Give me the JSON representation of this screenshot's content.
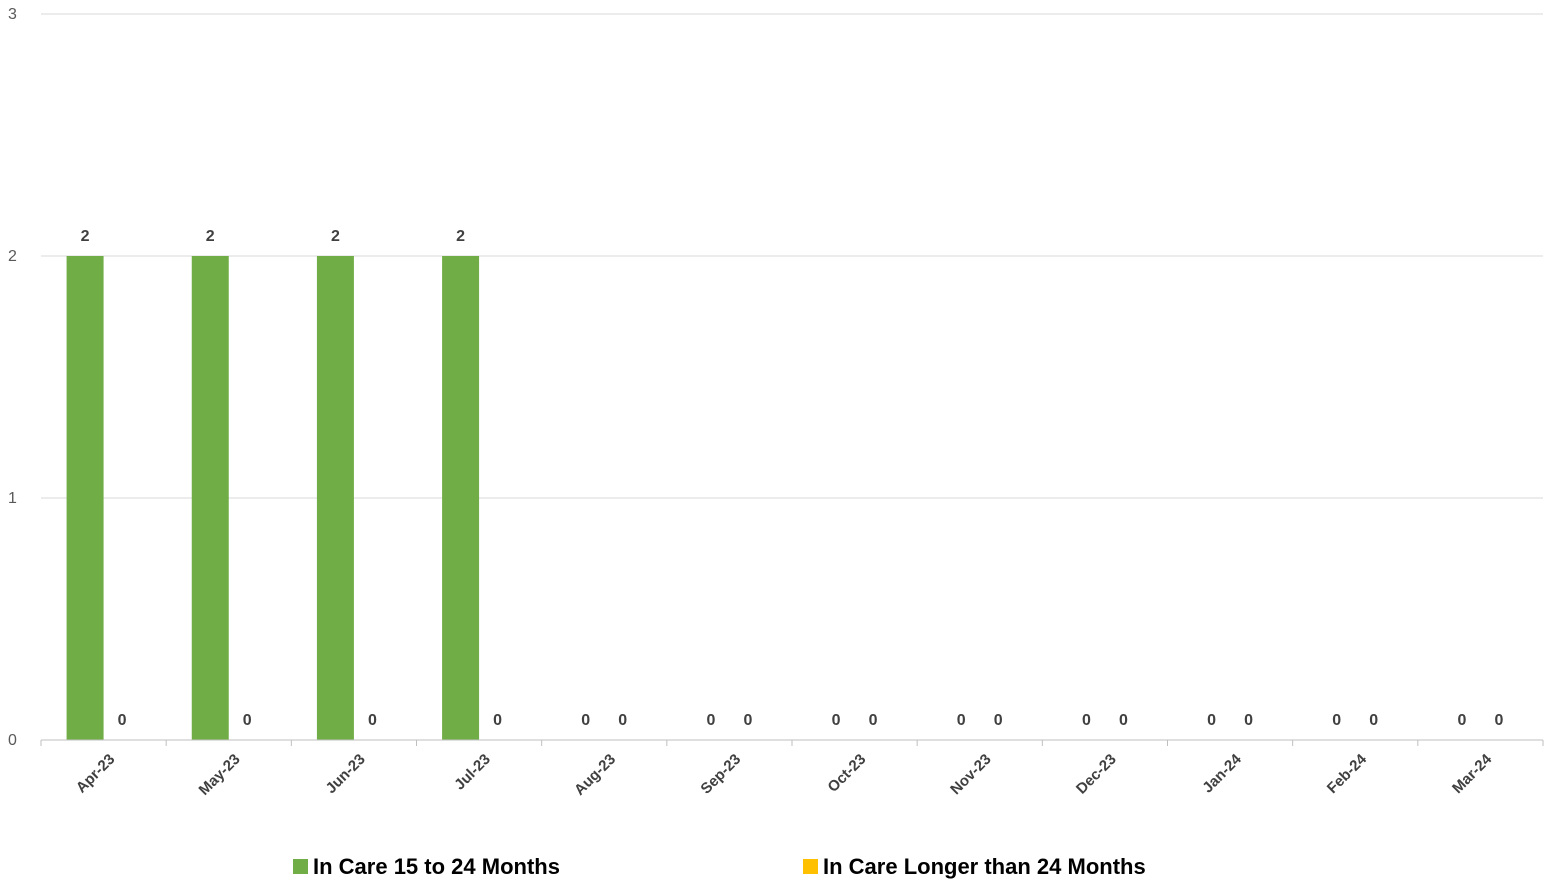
{
  "chart_data": {
    "type": "bar",
    "categories": [
      "Apr-23",
      "May-23",
      "Jun-23",
      "Jul-23",
      "Aug-23",
      "Sep-23",
      "Oct-23",
      "Nov-23",
      "Dec-23",
      "Jan-24",
      "Feb-24",
      "Mar-24"
    ],
    "series": [
      {
        "name": "In Care 15 to 24 Months",
        "values": [
          2,
          2,
          2,
          2,
          0,
          0,
          0,
          0,
          0,
          0,
          0,
          0
        ],
        "color": "#70AD47"
      },
      {
        "name": "In Care Longer than 24 Months",
        "values": [
          0,
          0,
          0,
          0,
          0,
          0,
          0,
          0,
          0,
          0,
          0,
          0
        ],
        "color": "#FFC000"
      }
    ],
    "yticks": [
      "0",
      "1",
      "2",
      "3"
    ],
    "ylim": [
      0,
      3
    ],
    "grid": true,
    "legend": "bottom",
    "title": "",
    "xlabel": "",
    "ylabel": ""
  }
}
